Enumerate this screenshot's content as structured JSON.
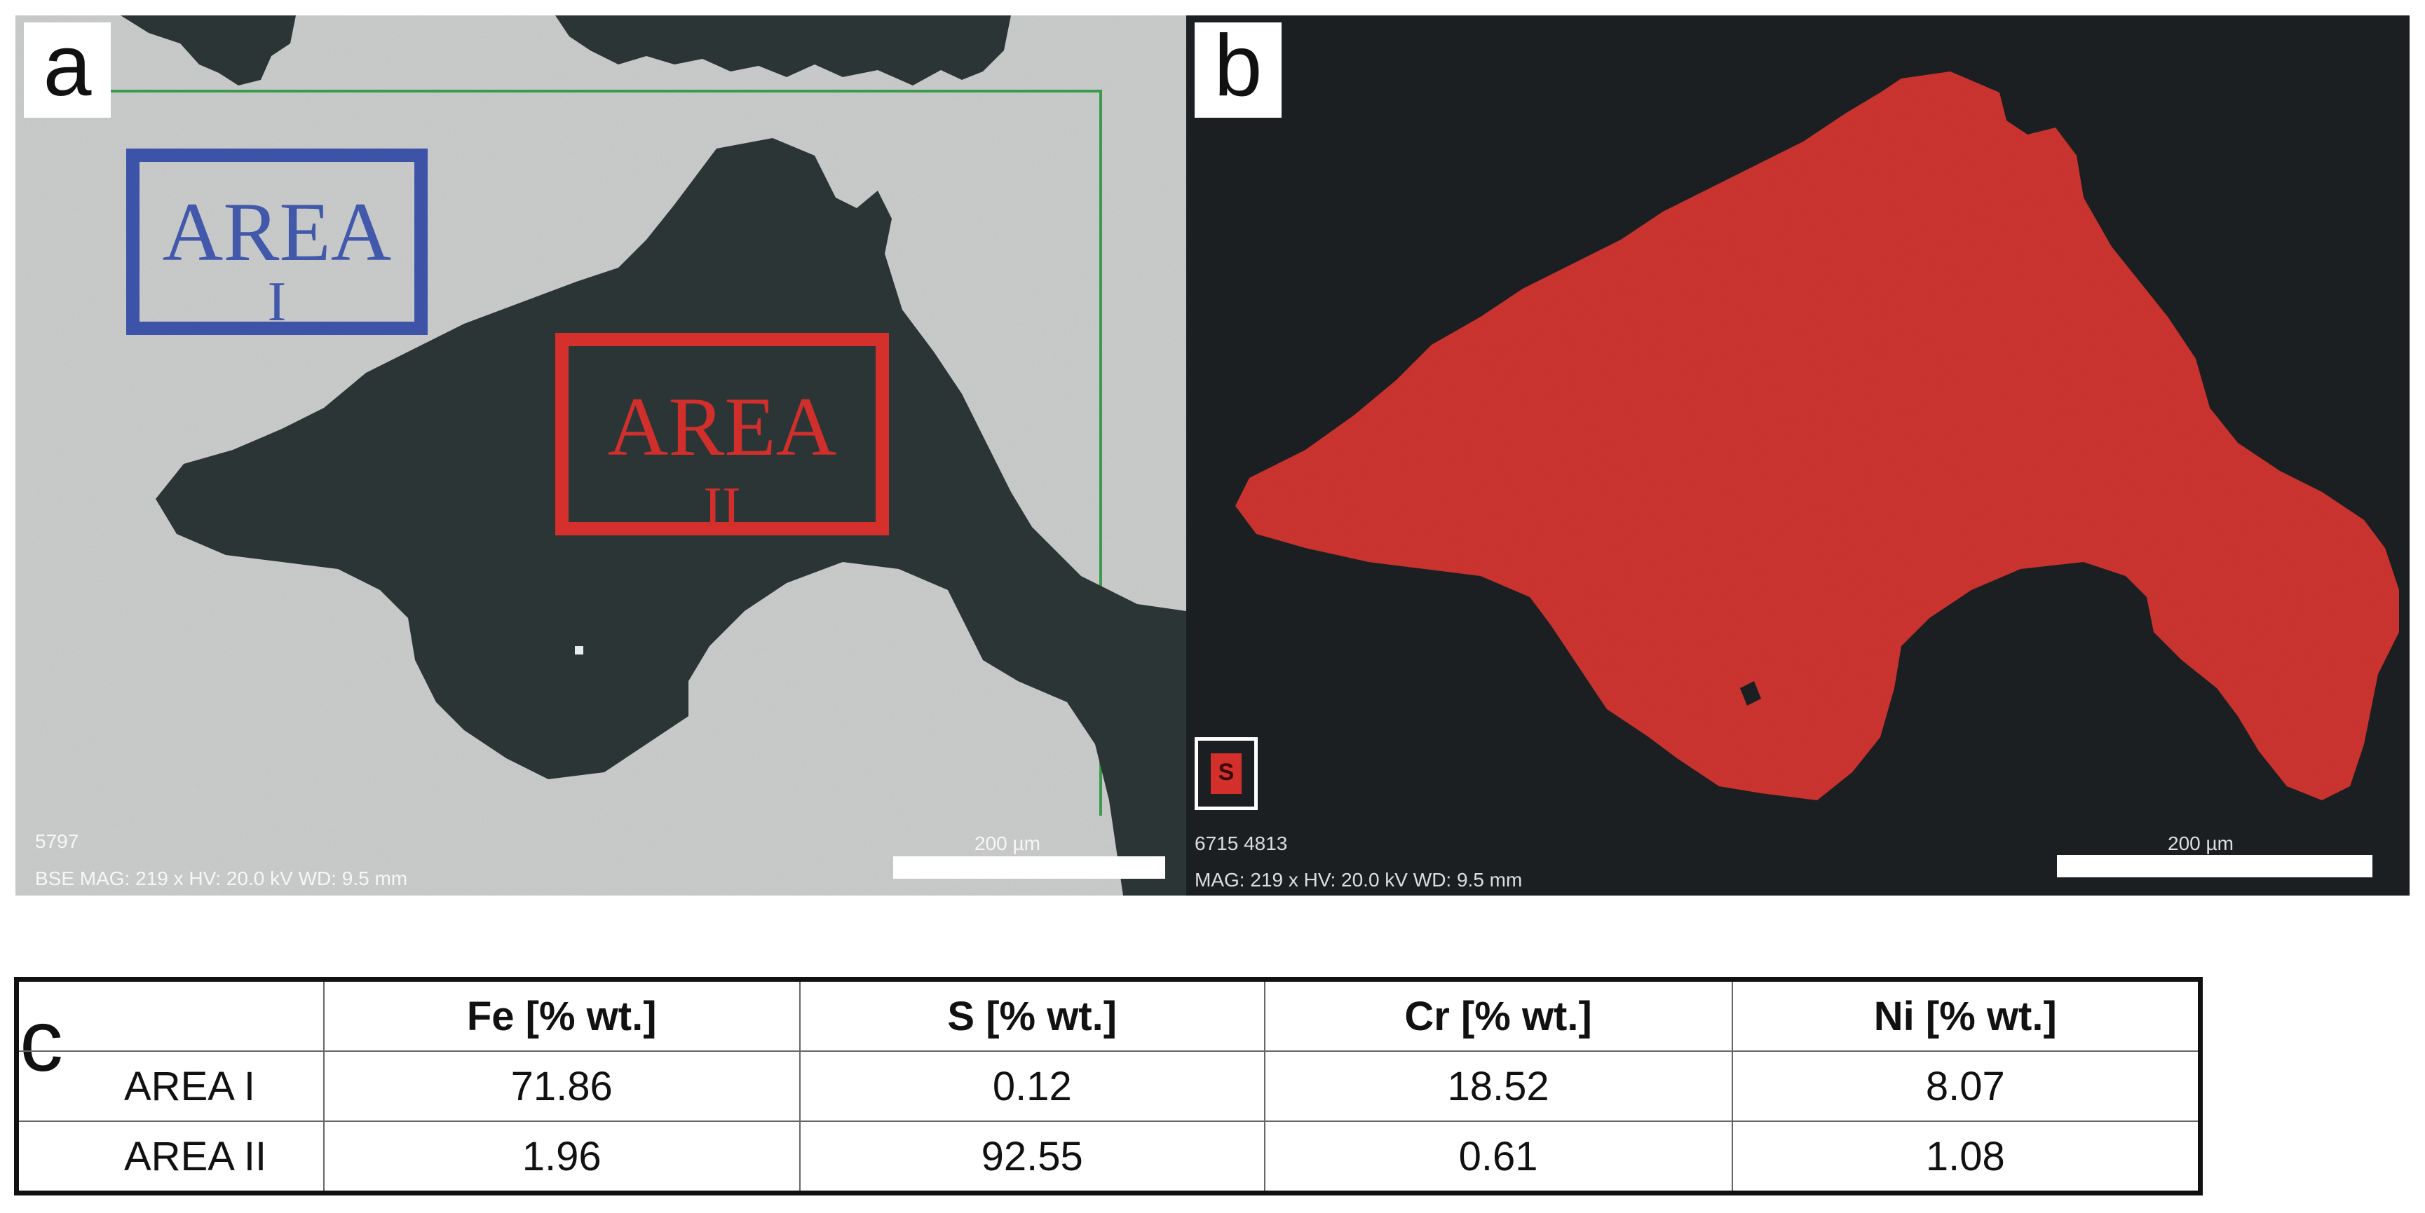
{
  "panel_a": {
    "letter": "a",
    "area_i": {
      "label": "AREA",
      "sub": "I"
    },
    "area_ii": {
      "label": "AREA",
      "sub": "II"
    },
    "id_text": "5797",
    "info_text": "BSE  MAG: 219 x  HV: 20.0 kV  WD: 9.5 mm",
    "scale_label": "200 µm"
  },
  "panel_b": {
    "letter": "b",
    "element_symbol": "S",
    "id_text": "6715 4813",
    "info_text": "MAG: 219 x  HV: 20.0 kV  WD: 9.5 mm",
    "scale_label": "200 µm"
  },
  "panel_c": {
    "letter": "c",
    "headers": [
      "",
      "Fe [% wt.]",
      "S [% wt.]",
      "Cr [% wt.]",
      "Ni [% wt.]"
    ],
    "rows": [
      {
        "label": "AREA I",
        "values": [
          "71.86",
          "0.12",
          "18.52",
          "8.07"
        ]
      },
      {
        "label": "AREA II",
        "values": [
          "1.96",
          "92.55",
          "0.61",
          "1.08"
        ]
      }
    ]
  },
  "colors": {
    "matrix_gray": "#c8cac9",
    "inclusion_dark": "#2c3536",
    "map_background": "#1b1f22",
    "sulfur_red": "#d3302b",
    "area_i_blue": "#3d53a7",
    "area_ii_red": "#d5302c",
    "scan_frame_green": "#3c9a4e"
  }
}
